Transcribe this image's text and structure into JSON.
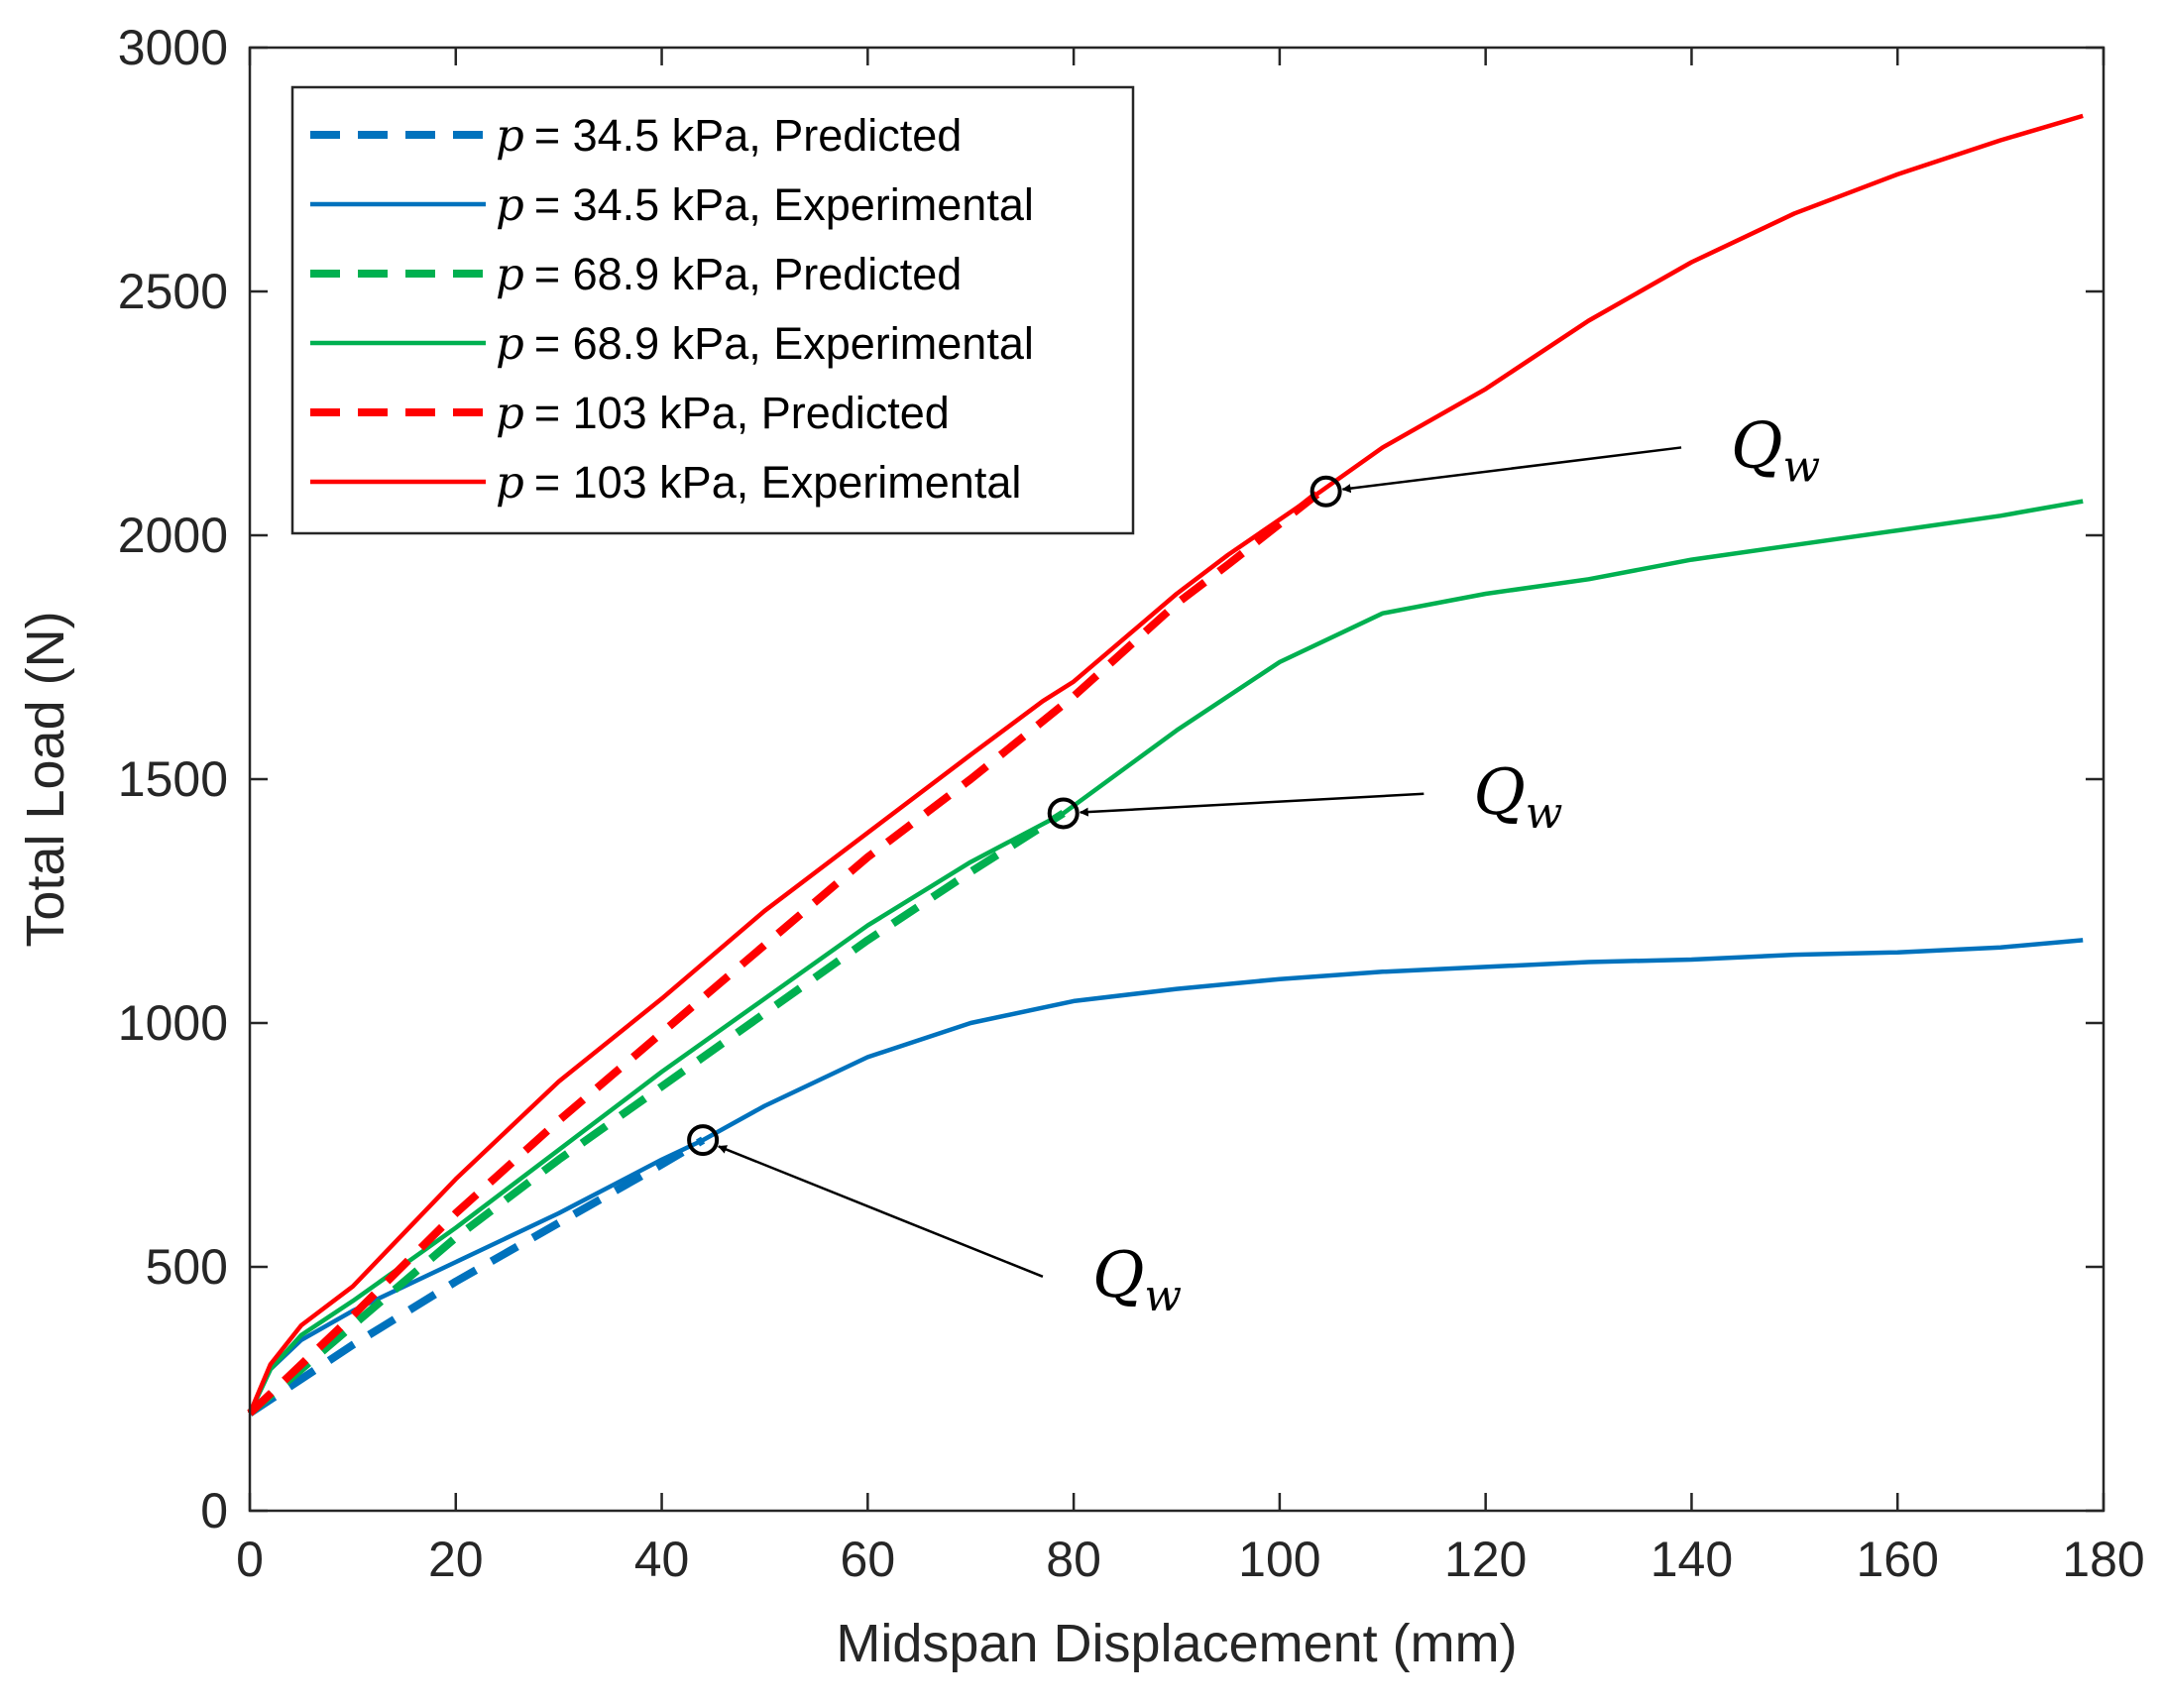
{
  "chart_data": {
    "type": "line",
    "xlabel": "Midspan Displacement (mm)",
    "ylabel": "Total Load (N)",
    "xlim": [
      0,
      180
    ],
    "ylim": [
      0,
      3000
    ],
    "xticks": [
      0,
      20,
      40,
      60,
      80,
      100,
      120,
      140,
      160,
      180
    ],
    "yticks": [
      0,
      500,
      1000,
      1500,
      2000,
      2500,
      3000
    ],
    "xtick_labels": [
      "0",
      "20",
      "40",
      "60",
      "80",
      "100",
      "120",
      "140",
      "160",
      "180"
    ],
    "ytick_labels": [
      "0",
      "500",
      "1000",
      "1500",
      "2000",
      "2500",
      "3000"
    ],
    "grid": false,
    "legend_position": "top-left",
    "legend_symbol": "p",
    "series": [
      {
        "name": "= 34.5 kPa, Predicted",
        "style": "dashed",
        "color": "#0072BD",
        "x": [
          0,
          10,
          20,
          30,
          40,
          44
        ],
        "y": [
          200,
          340,
          470,
          590,
          710,
          760
        ]
      },
      {
        "name": "= 34.5 kPa, Experimental",
        "style": "solid",
        "color": "#0072BD",
        "x": [
          0,
          2,
          5,
          10,
          20,
          30,
          40,
          44,
          50,
          60,
          70,
          80,
          90,
          100,
          110,
          120,
          130,
          140,
          150,
          160,
          170,
          178
        ],
        "y": [
          200,
          290,
          350,
          410,
          510,
          610,
          720,
          760,
          830,
          930,
          1000,
          1045,
          1070,
          1090,
          1105,
          1115,
          1125,
          1130,
          1140,
          1145,
          1155,
          1170
        ]
      },
      {
        "name": "= 68.9 kPa, Predicted",
        "style": "dashed",
        "color": "#00B050",
        "x": [
          0,
          10,
          20,
          30,
          40,
          50,
          60,
          70,
          79
        ],
        "y": [
          200,
          380,
          560,
          720,
          870,
          1020,
          1170,
          1310,
          1430
        ]
      },
      {
        "name": "= 68.9 kPa, Experimental",
        "style": "solid",
        "color": "#00B050",
        "x": [
          0,
          2,
          5,
          10,
          20,
          30,
          40,
          50,
          60,
          70,
          79,
          90,
          100,
          110,
          120,
          130,
          140,
          150,
          160,
          170,
          178
        ],
        "y": [
          200,
          290,
          360,
          430,
          580,
          740,
          900,
          1050,
          1200,
          1330,
          1430,
          1600,
          1740,
          1840,
          1880,
          1910,
          1950,
          1980,
          2010,
          2040,
          2070
        ]
      },
      {
        "name": "= 103 kPa, Predicted",
        "style": "dashed",
        "color": "#FF0000",
        "x": [
          0,
          10,
          20,
          30,
          40,
          50,
          60,
          70,
          80,
          90,
          95,
          104
        ],
        "y": [
          200,
          400,
          610,
          800,
          980,
          1160,
          1340,
          1500,
          1670,
          1860,
          1940,
          2090
        ]
      },
      {
        "name": "= 103 kPa, Experimental",
        "style": "solid",
        "color": "#FF0000",
        "x": [
          0,
          2,
          5,
          10,
          20,
          30,
          40,
          50,
          60,
          70,
          77,
          80,
          90,
          95,
          104,
          110,
          120,
          130,
          140,
          150,
          160,
          170,
          178
        ],
        "y": [
          200,
          300,
          380,
          460,
          680,
          880,
          1050,
          1230,
          1390,
          1550,
          1660,
          1700,
          1880,
          1960,
          2090,
          2180,
          2300,
          2440,
          2560,
          2660,
          2740,
          2810,
          2860
        ]
      }
    ],
    "annotations": [
      {
        "label": "Q",
        "subscript": "w",
        "point_x": 104.5,
        "point_y": 2090,
        "text_x": 139,
        "text_y": 2180
      },
      {
        "label": "Q",
        "subscript": "w",
        "point_x": 79,
        "point_y": 1430,
        "text_x": 114,
        "text_y": 1470
      },
      {
        "label": "Q",
        "subscript": "w",
        "point_x": 44,
        "point_y": 760,
        "text_x": 77,
        "text_y": 480
      }
    ]
  }
}
